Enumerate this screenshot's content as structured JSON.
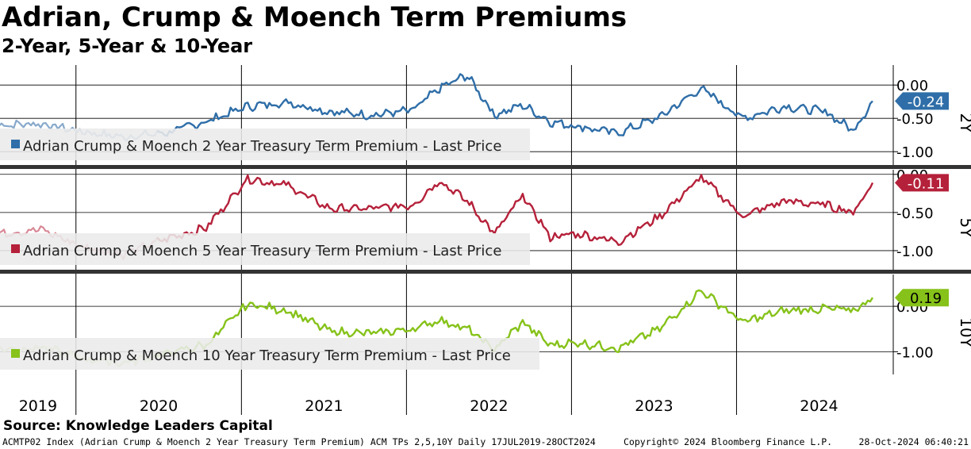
{
  "header": {
    "title": "Adrian, Crump & Moench Term Premiums",
    "subtitle": "2-Year, 5-Year & 10-Year"
  },
  "source": "Source: Knowledge Leaders Capital",
  "footer": {
    "left": "ACMTP02 Index (Adrian Crump & Moench 2 Year Treasury Term Premium) ACM TPs 2,5,10Y  Daily 17JUL2019-28OCT2024",
    "middle": "Copyright© 2024 Bloomberg Finance L.P.",
    "right": "28-Oct-2024 06:40:21"
  },
  "chart_data": [
    {
      "type": "line",
      "panel_label": "2Y",
      "legend": "Adrian Crump & Moench 2 Year Treasury Term Premium - Last Price",
      "last_value_label": "-0.24",
      "color": "#2f6ea8",
      "faded_color": "#88a9cb",
      "yticks": [
        0.0,
        -0.5,
        -1.0
      ],
      "ytick_labels": [
        "0.00",
        "-0.50",
        "-1.00"
      ],
      "ylim": [
        -1.2,
        0.3
      ],
      "x": [
        "2019-07",
        "2019-10",
        "2020-01",
        "2020-04",
        "2020-07",
        "2020-10",
        "2021-01",
        "2021-04",
        "2021-07",
        "2021-10",
        "2022-01",
        "2022-03",
        "2022-05",
        "2022-07",
        "2022-09",
        "2022-11",
        "2023-01",
        "2023-04",
        "2023-07",
        "2023-10",
        "2024-01",
        "2024-04",
        "2024-07",
        "2024-09",
        "2024-10-28"
      ],
      "y": [
        -0.6,
        -0.58,
        -0.7,
        -0.78,
        -0.72,
        -0.55,
        -0.32,
        -0.26,
        -0.4,
        -0.45,
        -0.38,
        -0.05,
        0.15,
        -0.45,
        -0.3,
        -0.55,
        -0.62,
        -0.72,
        -0.48,
        -0.05,
        -0.5,
        -0.32,
        -0.4,
        -0.68,
        -0.24
      ]
    },
    {
      "type": "line",
      "panel_label": "5Y",
      "legend": "Adrian Crump & Moench 5 Year Treasury Term Premium - Last Price",
      "last_value_label": "-0.11",
      "color": "#b5213a",
      "faded_color": "#d88996",
      "yticks": [
        0.0,
        -0.5,
        -1.0
      ],
      "ytick_labels": [
        "0.00",
        "-0.50",
        "-1.00"
      ],
      "ylim": [
        -1.25,
        0.06
      ],
      "x": [
        "2019-07",
        "2019-10",
        "2020-01",
        "2020-04",
        "2020-07",
        "2020-10",
        "2021-01",
        "2021-04",
        "2021-07",
        "2021-10",
        "2022-01",
        "2022-03",
        "2022-05",
        "2022-07",
        "2022-09",
        "2022-11",
        "2023-01",
        "2023-04",
        "2023-07",
        "2023-10",
        "2024-01",
        "2024-04",
        "2024-07",
        "2024-09",
        "2024-10-28"
      ],
      "y": [
        -0.78,
        -0.72,
        -0.95,
        -1.05,
        -0.85,
        -0.7,
        -0.05,
        -0.15,
        -0.45,
        -0.45,
        -0.4,
        -0.08,
        -0.35,
        -0.78,
        -0.28,
        -0.82,
        -0.78,
        -0.88,
        -0.55,
        -0.04,
        -0.55,
        -0.35,
        -0.4,
        -0.5,
        -0.11
      ]
    },
    {
      "type": "line",
      "panel_label": "10Y",
      "legend": "Adrian Crump & Moench 10 Year Treasury Term Premium - Last Price",
      "last_value_label": "0.19",
      "color": "#86c21a",
      "faded_color": "#bedc8a",
      "yticks": [
        0.0,
        -1.0
      ],
      "ytick_labels": [
        "0.00",
        "-1.00"
      ],
      "ylim": [
        -1.5,
        0.7
      ],
      "x": [
        "2019-07",
        "2019-10",
        "2020-01",
        "2020-04",
        "2020-07",
        "2020-10",
        "2021-01",
        "2021-04",
        "2021-07",
        "2021-10",
        "2022-01",
        "2022-03",
        "2022-05",
        "2022-07",
        "2022-09",
        "2022-11",
        "2023-01",
        "2023-04",
        "2023-07",
        "2023-10",
        "2024-01",
        "2024-04",
        "2024-07",
        "2024-09",
        "2024-10-28"
      ],
      "y": [
        -0.95,
        -0.9,
        -1.15,
        -1.25,
        -1.05,
        -0.85,
        0.05,
        -0.1,
        -0.55,
        -0.6,
        -0.5,
        -0.3,
        -0.5,
        -0.95,
        -0.35,
        -0.85,
        -0.8,
        -0.92,
        -0.5,
        0.35,
        -0.35,
        -0.1,
        -0.05,
        -0.1,
        0.19
      ]
    }
  ],
  "x_axis": {
    "labels": [
      "2019",
      "2020",
      "2021",
      "2022",
      "2023",
      "2024"
    ],
    "range": [
      "2019-07-17",
      "2024-10-28"
    ]
  }
}
